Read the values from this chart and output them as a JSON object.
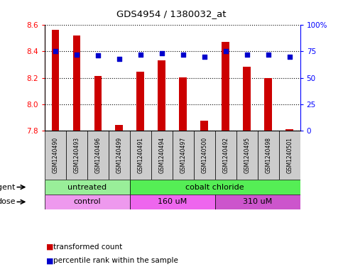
{
  "title": "GDS4954 / 1380032_at",
  "samples": [
    "GSM1240490",
    "GSM1240493",
    "GSM1240496",
    "GSM1240499",
    "GSM1240491",
    "GSM1240494",
    "GSM1240497",
    "GSM1240500",
    "GSM1240492",
    "GSM1240495",
    "GSM1240498",
    "GSM1240501"
  ],
  "bar_values": [
    8.565,
    8.52,
    8.215,
    7.84,
    8.245,
    8.335,
    8.205,
    7.875,
    8.475,
    8.285,
    8.2,
    7.81
  ],
  "dot_values": [
    75,
    72,
    71,
    68,
    72,
    73,
    72,
    70,
    75,
    72,
    72,
    70
  ],
  "bar_bottom": 7.8,
  "ylim_left": [
    7.8,
    8.6
  ],
  "ylim_right": [
    0,
    100
  ],
  "yticks_left": [
    7.8,
    8.0,
    8.2,
    8.4,
    8.6
  ],
  "yticks_right": [
    0,
    25,
    50,
    75,
    100
  ],
  "ytick_labels_right": [
    "0",
    "25",
    "50",
    "75",
    "100%"
  ],
  "bar_color": "#CC0000",
  "dot_color": "#0000CC",
  "agent_groups": [
    {
      "label": "untreated",
      "start": 0,
      "end": 4,
      "color": "#99EE99"
    },
    {
      "label": "cobalt chloride",
      "start": 4,
      "end": 12,
      "color": "#55EE55"
    }
  ],
  "dose_groups": [
    {
      "label": "control",
      "start": 0,
      "end": 4,
      "color": "#EE99EE"
    },
    {
      "label": "160 uM",
      "start": 4,
      "end": 8,
      "color": "#EE66EE"
    },
    {
      "label": "310 uM",
      "start": 8,
      "end": 12,
      "color": "#CC55CC"
    }
  ],
  "legend_red_label": "transformed count",
  "legend_blue_label": "percentile rank within the sample",
  "sample_box_color": "#CCCCCC",
  "n_samples": 12
}
